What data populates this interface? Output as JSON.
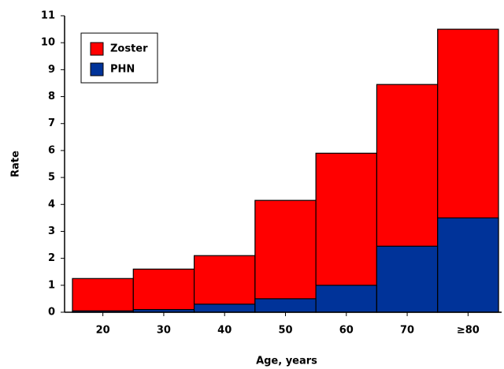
{
  "chart_data": {
    "type": "bar",
    "bar_mode": "overlay",
    "x_label": "Age, years",
    "y_label": "Rate",
    "categories": [
      "20",
      "30",
      "40",
      "50",
      "60",
      "70",
      "≥80"
    ],
    "series": [
      {
        "name": "Zoster",
        "color": "#ff0000",
        "values": [
          1.25,
          1.6,
          2.1,
          4.15,
          5.9,
          8.45,
          10.5
        ]
      },
      {
        "name": "PHN",
        "color": "#003399",
        "values": [
          0.05,
          0.1,
          0.3,
          0.5,
          1.0,
          2.45,
          3.5
        ]
      }
    ],
    "ylim": [
      0,
      11
    ],
    "yticks": [
      0,
      1,
      2,
      3,
      4,
      5,
      6,
      7,
      8,
      9,
      10,
      11
    ],
    "legend": "upper-left"
  }
}
